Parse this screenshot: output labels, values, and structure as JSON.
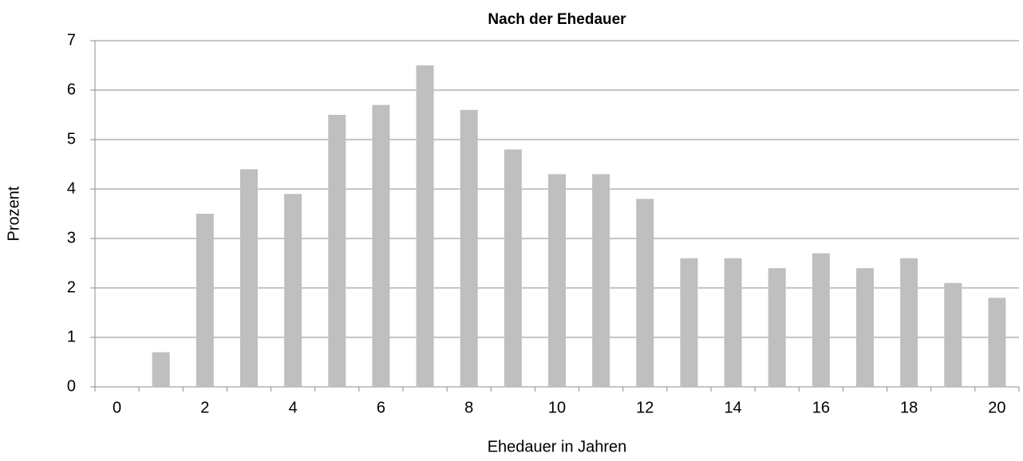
{
  "chart_data": {
    "type": "bar",
    "title": "Nach der Ehedauer",
    "x_label": "Ehedauer in Jahren",
    "y_label": "Prozent",
    "categories": [
      "0",
      null,
      "2",
      null,
      "4",
      null,
      "6",
      null,
      "8",
      null,
      "10",
      null,
      "12",
      null,
      "14",
      null,
      "16",
      null,
      "18",
      null,
      "20"
    ],
    "values": [
      0,
      0.7,
      3.5,
      4.4,
      3.9,
      5.5,
      5.7,
      6.5,
      5.6,
      4.8,
      4.3,
      4.3,
      3.8,
      2.6,
      2.6,
      2.4,
      2.7,
      2.4,
      2.6,
      2.1,
      1.8
    ],
    "color": "#bfbfbf",
    "ylim": [
      0,
      7
    ],
    "yticks": [
      0,
      1,
      2,
      3,
      4,
      5,
      6,
      7
    ],
    "grid": true
  }
}
